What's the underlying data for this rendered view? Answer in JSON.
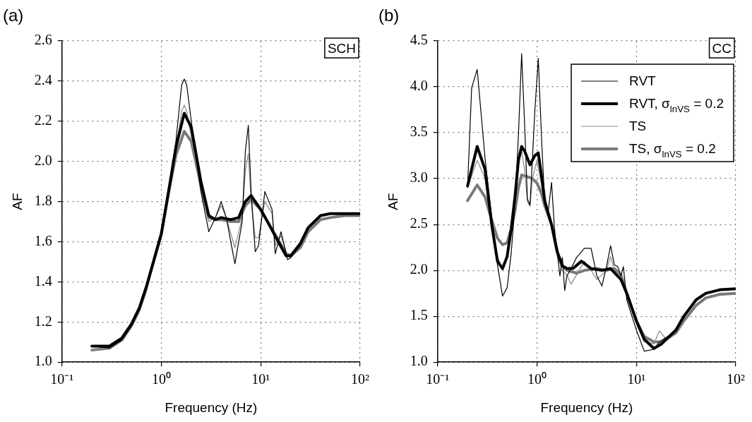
{
  "chart_data": [
    {
      "type": "line",
      "xlabel": "Frequency (Hz)",
      "ylabel": "AF",
      "annotations": [
        "(a)",
        "SCH"
      ],
      "log": "x",
      "grid": true,
      "legend": false,
      "xlim": [
        0.1,
        100
      ],
      "xticks": [
        {
          "value": 0.1,
          "label": "10⁻¹"
        },
        {
          "value": 1,
          "label": "10⁰"
        },
        {
          "value": 10,
          "label": "10¹"
        },
        {
          "value": 100,
          "label": "10²"
        }
      ],
      "ylim": [
        1.0,
        2.6
      ],
      "yticks": [
        {
          "value": 1,
          "label": "1.0"
        },
        {
          "value": 1.2,
          "label": "1.2"
        },
        {
          "value": 1.4,
          "label": "1.4"
        },
        {
          "value": 1.6,
          "label": "1.6"
        },
        {
          "value": 1.8,
          "label": "1.8"
        },
        {
          "value": 2,
          "label": "2.0"
        },
        {
          "value": 2.2,
          "label": "2.2"
        },
        {
          "value": 2.4,
          "label": "2.4"
        },
        {
          "value": 2.6,
          "label": "2.6"
        }
      ],
      "series": [
        {
          "color": "#000000",
          "x": [
            0.2,
            0.3,
            0.4,
            0.5,
            0.6,
            0.7,
            0.8,
            1.0,
            1.2,
            1.4,
            1.6,
            1.7,
            1.8,
            2.0,
            2.5,
            3,
            3.5,
            4,
            4.5,
            5.5,
            6.5,
            7,
            7.5,
            8,
            8.8,
            9.5,
            11,
            13,
            14,
            16,
            18.6,
            20,
            25
          ],
          "values": [
            1.08,
            1.07,
            1.11,
            1.18,
            1.26,
            1.36,
            1.47,
            1.63,
            1.87,
            2.1,
            2.38,
            2.41,
            2.38,
            2.2,
            1.85,
            1.65,
            1.72,
            1.8,
            1.72,
            1.49,
            1.7,
            2.05,
            2.18,
            1.85,
            1.55,
            1.58,
            1.85,
            1.76,
            1.54,
            1.65,
            1.51,
            1.52,
            1.58
          ]
        },
        {
          "color": "#000000",
          "x": [
            0.2,
            0.3,
            0.4,
            0.5,
            0.6,
            0.7,
            0.8,
            1.0,
            1.2,
            1.4,
            1.7,
            2.0,
            2.5,
            3,
            3.5,
            4,
            5,
            6,
            7,
            8,
            10,
            12,
            15,
            18,
            20,
            25,
            30,
            40,
            50,
            70,
            100
          ],
          "values": [
            1.08,
            1.08,
            1.12,
            1.19,
            1.27,
            1.37,
            1.47,
            1.64,
            1.87,
            2.07,
            2.24,
            2.17,
            1.9,
            1.73,
            1.71,
            1.72,
            1.71,
            1.72,
            1.8,
            1.83,
            1.76,
            1.69,
            1.6,
            1.53,
            1.53,
            1.59,
            1.67,
            1.73,
            1.74,
            1.74,
            1.74
          ]
        },
        {
          "color": "#888888",
          "x": [
            0.2,
            0.3,
            0.4,
            0.5,
            0.6,
            0.7,
            0.8,
            1.0,
            1.2,
            1.4,
            1.6,
            1.7,
            1.8,
            2.0,
            2.5,
            3,
            3.5,
            4,
            4.5,
            5.5,
            6.5,
            7,
            7.5,
            8,
            8.8,
            9.5,
            11,
            13,
            14,
            16,
            18.6,
            20,
            25
          ],
          "values": [
            1.06,
            1.07,
            1.11,
            1.18,
            1.26,
            1.36,
            1.47,
            1.64,
            1.86,
            2.05,
            2.25,
            2.28,
            2.25,
            2.12,
            1.85,
            1.7,
            1.72,
            1.78,
            1.72,
            1.57,
            1.72,
            1.95,
            2.04,
            1.8,
            1.62,
            1.62,
            1.8,
            1.74,
            1.58,
            1.63,
            1.53,
            1.53,
            1.57
          ]
        },
        {
          "color": "#7a7a7a",
          "x": [
            0.2,
            0.3,
            0.4,
            0.5,
            0.6,
            0.7,
            0.8,
            1.0,
            1.2,
            1.4,
            1.7,
            2.0,
            2.5,
            3,
            3.5,
            4,
            5,
            6,
            7,
            8,
            10,
            12,
            15,
            18,
            20,
            25,
            30,
            40,
            50,
            70,
            100
          ],
          "values": [
            1.06,
            1.07,
            1.11,
            1.18,
            1.26,
            1.36,
            1.47,
            1.64,
            1.86,
            2.03,
            2.15,
            2.1,
            1.88,
            1.72,
            1.71,
            1.71,
            1.7,
            1.7,
            1.78,
            1.81,
            1.76,
            1.69,
            1.61,
            1.54,
            1.53,
            1.57,
            1.65,
            1.71,
            1.72,
            1.73,
            1.73
          ]
        }
      ]
    },
    {
      "type": "line",
      "xlabel": "Frequency (Hz)",
      "ylabel": "AF",
      "annotations": [
        "(b)",
        "CC"
      ],
      "log": "x",
      "grid": true,
      "legend": "top right",
      "xlim": [
        0.1,
        100
      ],
      "xticks": [
        {
          "value": 0.1,
          "label": "10⁻¹"
        },
        {
          "value": 1,
          "label": "10⁰"
        },
        {
          "value": 10,
          "label": "10¹"
        },
        {
          "value": 100,
          "label": "10²"
        }
      ],
      "ylim": [
        1.0,
        4.5
      ],
      "yticks": [
        {
          "value": 1,
          "label": "1.0"
        },
        {
          "value": 1.5,
          "label": "1.5"
        },
        {
          "value": 2,
          "label": "2.0"
        },
        {
          "value": 2.5,
          "label": "2.5"
        },
        {
          "value": 3,
          "label": "3.0"
        },
        {
          "value": 3.5,
          "label": "3.5"
        },
        {
          "value": 4,
          "label": "4.0"
        },
        {
          "value": 4.5,
          "label": "4.5"
        }
      ],
      "series": [
        {
          "name": "RVT",
          "color": "#000000",
          "x": [
            0.2,
            0.22,
            0.25,
            0.3,
            0.35,
            0.4,
            0.45,
            0.5,
            0.55,
            0.6,
            0.65,
            0.7,
            0.75,
            0.8,
            0.85,
            0.9,
            0.95,
            1.03,
            1.07,
            1.12,
            1.2,
            1.3,
            1.4,
            1.5,
            1.7,
            1.8,
            1.9,
            2.0,
            2.3,
            2.5,
            3.0,
            3.5,
            4.0,
            4.5,
            5,
            5.5,
            6,
            6.5,
            7,
            7.4,
            8,
            10,
            12,
            15,
            17,
            20,
            22
          ],
          "values": [
            2.91,
            3.99,
            4.19,
            3.22,
            2.58,
            2.06,
            1.72,
            1.81,
            2.19,
            2.71,
            3.47,
            4.36,
            3.6,
            2.78,
            2.71,
            3.22,
            3.73,
            4.31,
            3.86,
            3.35,
            2.71,
            2.65,
            2.96,
            2.45,
            1.94,
            2.14,
            1.78,
            1.94,
            2.06,
            2.14,
            2.24,
            2.24,
            1.94,
            1.83,
            2.04,
            2.27,
            2.06,
            2.04,
            1.94,
            2.04,
            1.68,
            1.35,
            1.12,
            1.14,
            1.22,
            1.27,
            1.3
          ]
        },
        {
          "name": "RVT, σ$_{lnVS}$ = 0.2",
          "color": "#000000",
          "x": [
            0.2,
            0.25,
            0.3,
            0.35,
            0.4,
            0.45,
            0.5,
            0.55,
            0.6,
            0.65,
            0.7,
            0.75,
            0.85,
            0.95,
            1.03,
            1.12,
            1.2,
            1.4,
            1.6,
            1.8,
            2.0,
            2.3,
            2.8,
            3.5,
            4.5,
            5.5,
            7,
            8,
            10,
            12,
            15,
            18,
            20,
            25,
            30,
            40,
            50,
            70,
            100
          ],
          "values": [
            2.92,
            3.35,
            3.1,
            2.5,
            2.1,
            2.02,
            2.15,
            2.45,
            2.8,
            3.2,
            3.35,
            3.3,
            3.15,
            3.25,
            3.28,
            3.0,
            2.75,
            2.5,
            2.2,
            2.05,
            2.02,
            2.02,
            2.1,
            2.02,
            2.0,
            2.02,
            1.9,
            1.75,
            1.45,
            1.25,
            1.15,
            1.2,
            1.25,
            1.35,
            1.5,
            1.68,
            1.75,
            1.79,
            1.8
          ]
        },
        {
          "name": "TS",
          "color": "#888888",
          "x": [
            0.2,
            0.25,
            0.3,
            0.35,
            0.4,
            0.45,
            0.5,
            0.55,
            0.6,
            0.65,
            0.7,
            0.75,
            0.8,
            0.85,
            0.9,
            1.0,
            1.1,
            1.2,
            1.4,
            1.6,
            1.8,
            2.0,
            2.2,
            2.5,
            3.0,
            3.5,
            4,
            5,
            5.5,
            6,
            7,
            8,
            10,
            12,
            15,
            17,
            20,
            22
          ],
          "values": [
            2.9,
            3.2,
            3.0,
            2.5,
            2.15,
            2.0,
            2.15,
            2.45,
            2.8,
            3.15,
            3.3,
            3.1,
            2.75,
            2.7,
            3.0,
            3.2,
            2.95,
            2.7,
            2.5,
            2.15,
            2.0,
            1.95,
            1.85,
            1.95,
            2.1,
            2.0,
            1.9,
            2.0,
            2.15,
            2.0,
            1.95,
            1.72,
            1.42,
            1.22,
            1.2,
            1.34,
            1.25,
            1.28
          ]
        },
        {
          "name": "TS, σ$_{lnVS}$ = 0.2",
          "color": "#7a7a7a",
          "x": [
            0.2,
            0.25,
            0.3,
            0.35,
            0.4,
            0.45,
            0.5,
            0.55,
            0.6,
            0.65,
            0.7,
            0.8,
            0.9,
            1.0,
            1.1,
            1.2,
            1.4,
            1.6,
            1.8,
            2.0,
            2.5,
            3,
            4,
            5,
            6,
            7,
            8,
            10,
            12,
            15,
            18,
            20,
            25,
            30,
            40,
            50,
            70,
            100
          ],
          "values": [
            2.76,
            2.93,
            2.8,
            2.55,
            2.35,
            2.28,
            2.3,
            2.45,
            2.65,
            2.9,
            3.04,
            3.02,
            3.0,
            2.95,
            2.85,
            2.7,
            2.5,
            2.2,
            2.05,
            2.0,
            1.97,
            2.0,
            2.02,
            2.0,
            2.02,
            1.95,
            1.75,
            1.45,
            1.28,
            1.22,
            1.22,
            1.25,
            1.32,
            1.45,
            1.62,
            1.7,
            1.74,
            1.75
          ]
        }
      ]
    }
  ]
}
